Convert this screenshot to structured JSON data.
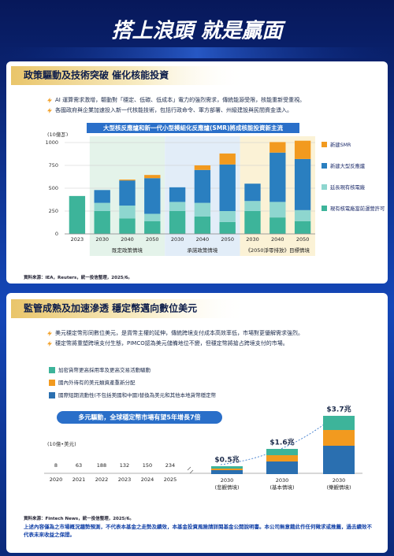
{
  "header": {
    "title": "搭上浪頭 就是贏面"
  },
  "sections": [
    {
      "title": "政策驅動及技術突破 催化核能投資",
      "bullets": [
        "AI 運算需求激增，驅動對「穩定、低碳、低成本」電力的強烈需求，傳統能源受限，核能重新受重視。",
        "各國政府與企業加速投入新一代核能技術，包括行政命令、軍方部署、州級建設與民間資金湧入。"
      ],
      "chart": {
        "type": "bar",
        "stacked": true,
        "title": "大型核反應爐和新一代小型模組化反應爐(SMR)將成核能投資新主流",
        "y_label": "(10億瓦)",
        "groups": [
          {
            "name": null,
            "categories": [
              "2023"
            ],
            "color": "#ffffff"
          },
          {
            "name": "既定政策情境",
            "categories": [
              "2030",
              "2040",
              "2050"
            ],
            "color": "#e4f3ea"
          },
          {
            "name": "承諾政策情境",
            "categories": [
              "2030",
              "2040",
              "2050"
            ],
            "color": "#e2edf8"
          },
          {
            "name": "《2050淨零排放》目標情境",
            "categories": [
              "2030",
              "2040",
              "2050"
            ],
            "color": "#fbf2d6"
          }
        ],
        "ylim": [
          0,
          1000
        ],
        "yticks": [
          0,
          250,
          500,
          750,
          1000
        ],
        "grid": true,
        "series": [
          {
            "name": "新建SMR",
            "color": "#f29a1f",
            "values": [
              0,
              0,
              10,
              35,
              0,
              50,
              120,
              0,
              115,
              200
            ]
          },
          {
            "name": "新建大型反應爐",
            "color": "#2a7fc0",
            "values": [
              0,
              140,
              275,
              390,
              160,
              360,
              510,
              190,
              540,
              560
            ]
          },
          {
            "name": "延長現有核電廠",
            "color": "#8ed6cf",
            "values": [
              0,
              90,
              140,
              80,
              100,
              150,
              120,
              110,
              170,
              120
            ]
          },
          {
            "name": "現有核電廠當前運營許可",
            "color": "#3db49a",
            "values": [
              415,
              250,
              170,
              140,
              250,
              190,
              130,
              250,
              180,
              140
            ]
          }
        ]
      },
      "source": "資料來源：IEA，Reuters，統一投信整理，2025/6。"
    },
    {
      "title": "監管成熟及加速滲透 穩定幣邁向數位美元",
      "bullets": [
        "美元穩定幣形同數位美元，是貨幣主權的延伸，傳統跨境支付成本高效率低，市場對更優解需求強烈。",
        "穩定幣將重塑跨境支付生態，PIMCO認為美元儲備地位不變，但穩定幣將搶占跨境支付的市場。"
      ],
      "chart": {
        "type": "bar",
        "stacked": true,
        "title": "多元驅動，全球穩定幣市場有望5年增長7倍",
        "unit": "(10億•美元)",
        "history": {
          "x": [
            "2020",
            "2021",
            "2022",
            "2023",
            "2024",
            "2025"
          ],
          "values": [
            8,
            63,
            188,
            132,
            150,
            234
          ]
        },
        "categories": [
          "2030",
          "2030",
          "2030"
        ],
        "scenarios": [
          "(悲觀情境)",
          "(基本情境)",
          "(樂觀情境)"
        ],
        "totals": [
          0.5,
          1.6,
          3.7
        ],
        "total_labels": [
          "$0.5兆",
          "$1.6兆",
          "$3.7兆"
        ],
        "series": [
          {
            "name": "加密貨幣更高採用率及更高交易活動驅動",
            "color": "#3db49a",
            "values": [
              0.15,
              0.4,
              0.9
            ]
          },
          {
            "name": "國內外待有的美元類資產重新分配",
            "color": "#f29a1f",
            "values": [
              0.1,
              0.4,
              1.0
            ]
          },
          {
            "name": "國際短期流動性(不包括美國和中國)替換為美元和其他本地貨幣穩定幣",
            "color": "#2a6fb0",
            "values": [
              0.25,
              0.8,
              1.8
            ]
          }
        ]
      },
      "source": "資料來源：Fintech News，統一投信整理，2025/6。"
    }
  ],
  "disclaimer": "上述內容僅為之市場概況趨勢預測，不代表本基金之走勢及績效，本基金投資風險請詳閱基金公開說明書。本公司無意藉此作任何徵求或推薦，過去績效不代表未來收益之保證。"
}
